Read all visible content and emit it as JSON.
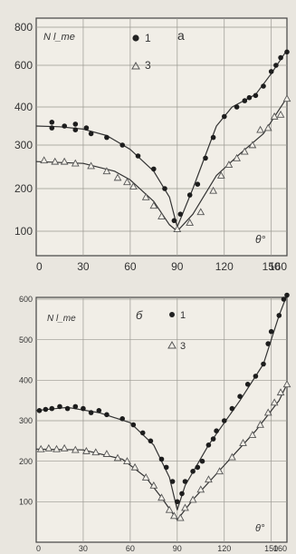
{
  "chart_data": [
    {
      "type": "scatter",
      "panel_label": "a",
      "ylabel": "N l_me",
      "xlabel": "θ°",
      "x_ticks": [
        0,
        30,
        60,
        90,
        120,
        150,
        160
      ],
      "y_ticks": [
        100,
        200,
        300,
        400,
        600,
        800
      ],
      "xlim": [
        0,
        160
      ],
      "grid": true,
      "legend": [
        {
          "marker": "filled-circle",
          "label": "1"
        },
        {
          "marker": "open-triangle",
          "label": "3"
        }
      ],
      "series": [
        {
          "marker": "filled-circle",
          "points": [
            [
              10,
              360
            ],
            [
              10,
              345
            ],
            [
              18,
              350
            ],
            [
              25,
              355
            ],
            [
              25,
              340
            ],
            [
              32,
              345
            ],
            [
              35,
              330
            ],
            [
              45,
              320
            ],
            [
              55,
              300
            ],
            [
              65,
              275
            ],
            [
              75,
              245
            ],
            [
              82,
              200
            ],
            [
              88,
              125
            ],
            [
              92,
              140
            ],
            [
              98,
              185
            ],
            [
              103,
              210
            ],
            [
              108,
              270
            ],
            [
              113,
              320
            ],
            [
              120,
              375
            ],
            [
              128,
              400
            ],
            [
              133,
              430
            ],
            [
              136,
              445
            ],
            [
              140,
              455
            ],
            [
              145,
              500
            ],
            [
              150,
              570
            ],
            [
              153,
              600
            ],
            [
              156,
              640
            ],
            [
              160,
              670
            ]
          ],
          "curve": [
            [
              0,
              350
            ],
            [
              15,
              348
            ],
            [
              30,
              342
            ],
            [
              45,
              325
            ],
            [
              60,
              290
            ],
            [
              75,
              240
            ],
            [
              85,
              180
            ],
            [
              90,
              110
            ],
            [
              100,
              200
            ],
            [
              115,
              350
            ],
            [
              125,
              400
            ],
            [
              140,
              460
            ],
            [
              150,
              560
            ],
            [
              160,
              680
            ]
          ]
        },
        {
          "marker": "open-triangle",
          "points": [
            [
              5,
              265
            ],
            [
              12,
              262
            ],
            [
              18,
              262
            ],
            [
              25,
              258
            ],
            [
              35,
              252
            ],
            [
              45,
              240
            ],
            [
              52,
              225
            ],
            [
              58,
              215
            ],
            [
              62,
              205
            ],
            [
              70,
              180
            ],
            [
              75,
              160
            ],
            [
              80,
              135
            ],
            [
              90,
              105
            ],
            [
              98,
              120
            ],
            [
              105,
              145
            ],
            [
              113,
              195
            ],
            [
              118,
              230
            ],
            [
              123,
              255
            ],
            [
              128,
              270
            ],
            [
              133,
              285
            ],
            [
              138,
              300
            ],
            [
              143,
              340
            ],
            [
              148,
              345
            ],
            [
              152,
              375
            ],
            [
              156,
              380
            ],
            [
              160,
              440
            ]
          ],
          "curve": [
            [
              0,
              262
            ],
            [
              30,
              258
            ],
            [
              50,
              240
            ],
            [
              60,
              220
            ],
            [
              75,
              170
            ],
            [
              85,
              115
            ],
            [
              90,
              100
            ],
            [
              100,
              140
            ],
            [
              115,
              230
            ],
            [
              130,
              280
            ],
            [
              145,
              330
            ],
            [
              160,
              445
            ]
          ]
        }
      ]
    },
    {
      "type": "scatter",
      "panel_label": "б",
      "ylabel": "N l_me",
      "xlabel": "θ°",
      "x_ticks": [
        0,
        30,
        60,
        90,
        120,
        150,
        160
      ],
      "y_ticks": [
        100,
        200,
        300,
        400,
        500,
        600
      ],
      "xlim": [
        0,
        160
      ],
      "ylim": [
        0,
        600
      ],
      "grid": true,
      "legend": [
        {
          "marker": "filled-circle",
          "label": "1"
        },
        {
          "marker": "open-triangle",
          "label": "3"
        }
      ],
      "series": [
        {
          "marker": "filled-circle",
          "points": [
            [
              2,
              325
            ],
            [
              6,
              328
            ],
            [
              10,
              330
            ],
            [
              15,
              335
            ],
            [
              20,
              330
            ],
            [
              25,
              335
            ],
            [
              30,
              330
            ],
            [
              35,
              320
            ],
            [
              40,
              325
            ],
            [
              45,
              315
            ],
            [
              55,
              305
            ],
            [
              62,
              290
            ],
            [
              68,
              270
            ],
            [
              73,
              250
            ],
            [
              80,
              205
            ],
            [
              83,
              185
            ],
            [
              87,
              150
            ],
            [
              90,
              100
            ],
            [
              93,
              120
            ],
            [
              95,
              150
            ],
            [
              100,
              175
            ],
            [
              103,
              185
            ],
            [
              106,
              200
            ],
            [
              110,
              240
            ],
            [
              113,
              255
            ],
            [
              115,
              275
            ],
            [
              120,
              300
            ],
            [
              125,
              330
            ],
            [
              130,
              360
            ],
            [
              135,
              390
            ],
            [
              140,
              410
            ],
            [
              145,
              440
            ],
            [
              148,
              490
            ],
            [
              150,
              520
            ],
            [
              155,
              560
            ],
            [
              158,
              600
            ],
            [
              160,
              610
            ]
          ],
          "curve": [
            [
              0,
              325
            ],
            [
              20,
              333
            ],
            [
              40,
              320
            ],
            [
              60,
              295
            ],
            [
              75,
              240
            ],
            [
              85,
              160
            ],
            [
              90,
              80
            ],
            [
              95,
              140
            ],
            [
              110,
              240
            ],
            [
              130,
              350
            ],
            [
              145,
              440
            ],
            [
              155,
              560
            ],
            [
              160,
              610
            ]
          ]
        },
        {
          "marker": "open-triangle",
          "points": [
            [
              3,
              230
            ],
            [
              8,
              232
            ],
            [
              13,
              230
            ],
            [
              18,
              232
            ],
            [
              25,
              228
            ],
            [
              32,
              225
            ],
            [
              38,
              222
            ],
            [
              45,
              218
            ],
            [
              52,
              208
            ],
            [
              58,
              200
            ],
            [
              63,
              185
            ],
            [
              70,
              160
            ],
            [
              75,
              140
            ],
            [
              80,
              110
            ],
            [
              85,
              80
            ],
            [
              88,
              65
            ],
            [
              92,
              60
            ],
            [
              95,
              85
            ],
            [
              100,
              105
            ],
            [
              105,
              130
            ],
            [
              110,
              155
            ],
            [
              117,
              175
            ],
            [
              125,
              210
            ],
            [
              132,
              245
            ],
            [
              138,
              265
            ],
            [
              143,
              290
            ],
            [
              148,
              320
            ],
            [
              152,
              345
            ],
            [
              156,
              370
            ],
            [
              160,
              390
            ]
          ],
          "curve": [
            [
              0,
              230
            ],
            [
              30,
              228
            ],
            [
              55,
              205
            ],
            [
              70,
              160
            ],
            [
              80,
              110
            ],
            [
              90,
              55
            ],
            [
              100,
              105
            ],
            [
              120,
              190
            ],
            [
              140,
              275
            ],
            [
              155,
              350
            ],
            [
              160,
              390
            ]
          ]
        }
      ]
    }
  ]
}
